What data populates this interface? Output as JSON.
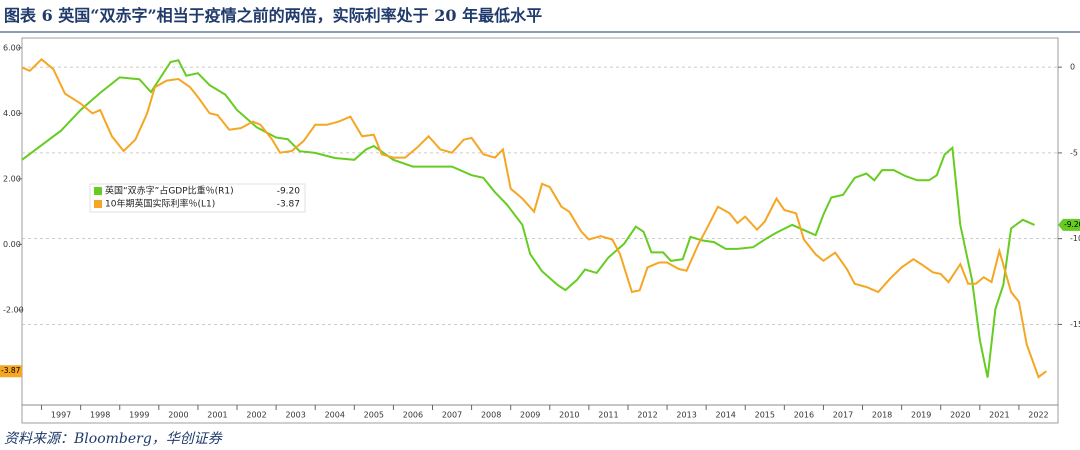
{
  "chart_data": {
    "type": "line",
    "title": "图表 6 英国“双赤字”相当于疫情之前的两倍，实际利率处于 20 年最低水平",
    "source": "资料来源：Bloomberg，华创证券",
    "xlim": [
      1996.5,
      2023
    ],
    "xticks": [
      1997,
      1998,
      1999,
      2000,
      2001,
      2002,
      2003,
      2004,
      2005,
      2006,
      2007,
      2008,
      2009,
      2010,
      2011,
      2012,
      2013,
      2014,
      2015,
      2016,
      2017,
      2018,
      2019,
      2020,
      2021,
      2022
    ],
    "ylim": [
      -4.9,
      6.3
    ],
    "yticks": [
      {
        "value": 6,
        "label": "6.00"
      },
      {
        "value": 4,
        "label": "4.00"
      },
      {
        "value": 2,
        "label": "2.00"
      },
      {
        "value": 0,
        "label": "0.00"
      },
      {
        "value": -2,
        "label": "-2.00"
      }
    ],
    "y2lim": [
      -19.7,
      1.7
    ],
    "y2ticks": [
      0,
      -5,
      -10,
      -15
    ],
    "grid": true,
    "series": [
      {
        "name": "英国“双赤字”占GDP比重％(R1)",
        "color": "#66cc22",
        "axis": "y2",
        "last_label": "-9.20",
        "x": [
          1996.5,
          1997.5,
          1998.0,
          1998.5,
          1999.0,
          1999.5,
          1999.8,
          2000.3,
          2000.5,
          2000.7,
          2001.0,
          2001.3,
          2001.7,
          2002.0,
          2002.5,
          2003.0,
          2003.3,
          2003.6,
          2004.0,
          2004.5,
          2005.0,
          2005.3,
          2005.5,
          2006.0,
          2006.5,
          2007.0,
          2007.5,
          2008.0,
          2008.3,
          2008.6,
          2008.9,
          2009.3,
          2009.5,
          2009.8,
          2010.2,
          2010.4,
          2010.7,
          2010.9,
          2011.2,
          2011.5,
          2011.9,
          2012.2,
          2012.4,
          2012.6,
          2012.9,
          2013.1,
          2013.4,
          2013.6,
          2013.9,
          2014.2,
          2014.5,
          2014.8,
          2015.2,
          2015.5,
          2015.8,
          2016.2,
          2016.5,
          2016.8,
          2017.0,
          2017.2,
          2017.5,
          2017.8,
          2018.1,
          2018.3,
          2018.5,
          2018.8,
          2019.1,
          2019.4,
          2019.7,
          2019.9,
          2020.1,
          2020.3,
          2020.5,
          2020.8,
          2021.0,
          2021.2,
          2021.4,
          2021.6,
          2021.8,
          2022.1,
          2022.4
        ],
        "values": [
          -5.4,
          -3.7,
          -2.5,
          -1.5,
          -0.6,
          -0.7,
          -1.45,
          0.3,
          0.4,
          -0.5,
          -0.35,
          -1.05,
          -1.6,
          -2.5,
          -3.5,
          -4.1,
          -4.2,
          -4.9,
          -5.0,
          -5.3,
          -5.4,
          -4.8,
          -4.6,
          -5.4,
          -5.8,
          -5.8,
          -5.8,
          -6.3,
          -6.45,
          -7.3,
          -8.0,
          -9.2,
          -10.9,
          -11.9,
          -12.7,
          -13.0,
          -12.4,
          -11.8,
          -12.0,
          -11.1,
          -10.3,
          -9.3,
          -9.6,
          -10.8,
          -10.8,
          -11.3,
          -11.2,
          -9.9,
          -10.1,
          -10.2,
          -10.6,
          -10.6,
          -10.5,
          -10.05,
          -9.65,
          -9.2,
          -9.5,
          -9.8,
          -8.6,
          -7.6,
          -7.45,
          -6.45,
          -6.2,
          -6.6,
          -6.0,
          -6.0,
          -6.35,
          -6.6,
          -6.6,
          -6.3,
          -5.1,
          -4.7,
          -9.2,
          -12.4,
          -15.9,
          -18.1,
          -14.1,
          -12.7,
          -9.4,
          -8.9,
          -9.2
        ]
      },
      {
        "name": "10年期英国实际利率％(L1)",
        "color": "#f5a623",
        "axis": "y",
        "last_label": "-3.87",
        "x": [
          1996.5,
          1996.7,
          1997.0,
          1997.3,
          1997.6,
          1998.0,
          1998.3,
          1998.5,
          1998.8,
          1999.1,
          1999.4,
          1999.7,
          1999.9,
          2000.2,
          2000.5,
          2000.8,
          2001.0,
          2001.3,
          2001.5,
          2001.8,
          2002.1,
          2002.4,
          2002.6,
          2002.9,
          2003.1,
          2003.4,
          2003.7,
          2004.0,
          2004.3,
          2004.6,
          2004.9,
          2005.2,
          2005.5,
          2005.7,
          2006.0,
          2006.3,
          2006.6,
          2006.9,
          2007.2,
          2007.5,
          2007.8,
          2008.0,
          2008.3,
          2008.6,
          2008.8,
          2009.0,
          2009.3,
          2009.6,
          2009.8,
          2010.0,
          2010.3,
          2010.5,
          2010.8,
          2011.0,
          2011.3,
          2011.6,
          2011.8,
          2012.1,
          2012.3,
          2012.5,
          2012.8,
          2013.0,
          2013.3,
          2013.5,
          2013.8,
          2014.0,
          2014.3,
          2014.6,
          2014.8,
          2015.0,
          2015.3,
          2015.5,
          2015.8,
          2016.0,
          2016.3,
          2016.5,
          2016.8,
          2017.0,
          2017.3,
          2017.6,
          2017.8,
          2018.1,
          2018.4,
          2018.7,
          2019.0,
          2019.3,
          2019.5,
          2019.8,
          2020.0,
          2020.2,
          2020.5,
          2020.7,
          2020.9,
          2021.1,
          2021.3,
          2021.5,
          2021.8,
          2022.0,
          2022.2,
          2022.5,
          2022.7
        ],
        "values": [
          5.4,
          5.3,
          5.65,
          5.35,
          4.6,
          4.3,
          4.0,
          4.1,
          3.3,
          2.85,
          3.2,
          4.0,
          4.8,
          5.0,
          5.05,
          4.8,
          4.5,
          4.0,
          3.95,
          3.5,
          3.55,
          3.75,
          3.65,
          3.2,
          2.8,
          2.85,
          3.15,
          3.65,
          3.65,
          3.75,
          3.9,
          3.3,
          3.35,
          2.75,
          2.65,
          2.65,
          2.95,
          3.3,
          2.9,
          2.8,
          3.2,
          3.25,
          2.75,
          2.65,
          2.9,
          1.7,
          1.4,
          1.0,
          1.85,
          1.75,
          1.15,
          1.0,
          0.4,
          0.15,
          0.25,
          0.15,
          -0.3,
          -1.45,
          -1.4,
          -0.7,
          -0.55,
          -0.55,
          -0.75,
          -0.8,
          0.0,
          0.45,
          1.15,
          0.95,
          0.65,
          0.85,
          0.45,
          0.7,
          1.4,
          1.05,
          0.95,
          0.15,
          -0.3,
          -0.5,
          -0.25,
          -0.75,
          -1.2,
          -1.3,
          -1.45,
          -1.05,
          -0.7,
          -0.45,
          -0.6,
          -0.85,
          -0.9,
          -1.15,
          -0.6,
          -1.2,
          -1.2,
          -1.0,
          -1.15,
          -0.2,
          -1.45,
          -1.75,
          -3.05,
          -4.05,
          -3.87
        ]
      }
    ]
  }
}
